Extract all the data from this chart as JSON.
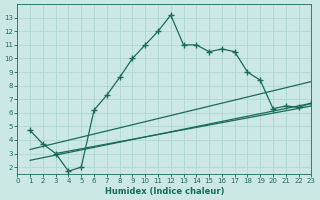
{
  "xlabel": "Humidex (Indice chaleur)",
  "bg_color": "#cce8e4",
  "grid_color": "#b0d8d4",
  "line_color": "#1a6b5a",
  "line1_x": [
    1,
    2,
    3,
    4,
    5,
    6,
    7,
    8,
    9,
    10,
    11,
    12,
    13,
    14,
    15,
    16,
    17,
    18,
    19,
    20,
    21,
    22,
    23
  ],
  "line1_y": [
    4.7,
    3.7,
    3.0,
    1.7,
    2.0,
    6.2,
    7.3,
    8.6,
    10.0,
    11.0,
    12.0,
    13.2,
    11.0,
    11.0,
    10.5,
    10.7,
    10.5,
    9.0,
    8.4,
    6.3,
    6.5,
    6.4,
    6.7
  ],
  "line2_x": [
    1,
    23
  ],
  "line2_y": [
    3.3,
    8.3
  ],
  "line3_x": [
    1,
    23
  ],
  "line3_y": [
    2.5,
    6.7
  ],
  "line4_x": [
    3,
    23
  ],
  "line4_y": [
    3.0,
    6.5
  ],
  "xlim": [
    0,
    23
  ],
  "ylim": [
    1.5,
    14.0
  ],
  "yticks": [
    2,
    3,
    4,
    5,
    6,
    7,
    8,
    9,
    10,
    11,
    12,
    13
  ],
  "xticks": [
    0,
    1,
    2,
    3,
    4,
    5,
    6,
    7,
    8,
    9,
    10,
    11,
    12,
    13,
    14,
    15,
    16,
    17,
    18,
    19,
    20,
    21,
    22,
    23
  ]
}
